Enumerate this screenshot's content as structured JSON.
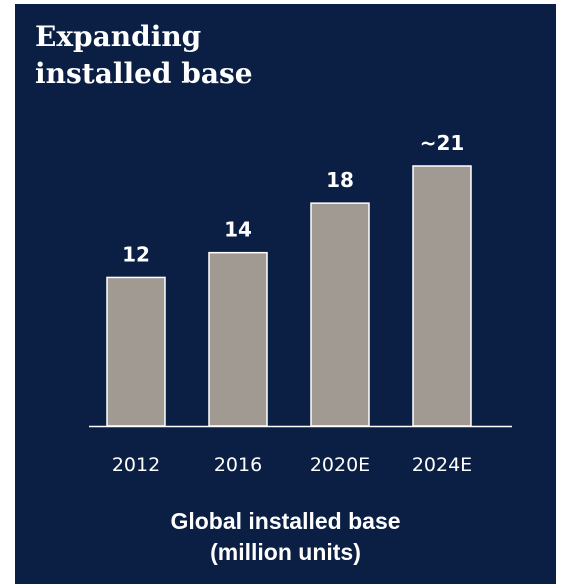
{
  "chart_data": {
    "type": "bar",
    "title_lines": [
      "Expanding",
      "installed base"
    ],
    "categories": [
      "2012",
      "2016",
      "2020E",
      "2024E"
    ],
    "values": [
      12,
      14,
      18,
      21
    ],
    "value_labels": [
      "12",
      "14",
      "18",
      "~21"
    ],
    "xlabel_lines": [
      "Global installed base",
      "(million units)"
    ],
    "ylabel": "",
    "ylim": [
      0,
      21
    ],
    "grid": false,
    "legend": "none"
  },
  "colors": {
    "background": "#0b1f45",
    "bar": "#a09a92",
    "bar_outline": "#ffffff",
    "axis": "#ffffff",
    "text": "#ffffff"
  }
}
